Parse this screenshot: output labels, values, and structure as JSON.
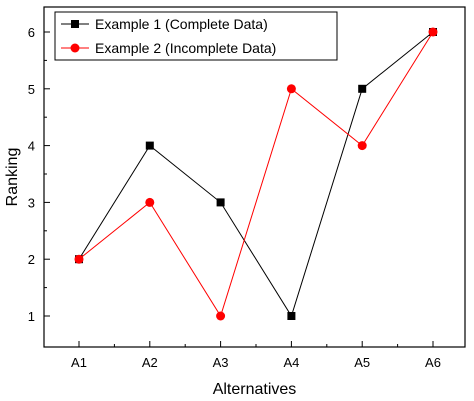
{
  "chart_data": {
    "type": "line",
    "categories": [
      "A1",
      "A2",
      "A3",
      "A4",
      "A5",
      "A6"
    ],
    "xlabel": "Alternatives",
    "ylabel": "Ranking",
    "ylim": [
      0.4,
      6.5
    ],
    "yticks": [
      1,
      2,
      3,
      4,
      5,
      6
    ],
    "grid": false,
    "legend_position": "top-left",
    "series": [
      {
        "name": "Example 1 (Complete Data)",
        "values": [
          2,
          4,
          3,
          1,
          5,
          6
        ],
        "color": "#000000",
        "marker": "square"
      },
      {
        "name": "Example 2 (Incomplete Data)",
        "values": [
          2,
          3,
          1,
          5,
          4,
          6
        ],
        "color": "#ff0000",
        "marker": "circle"
      }
    ]
  }
}
